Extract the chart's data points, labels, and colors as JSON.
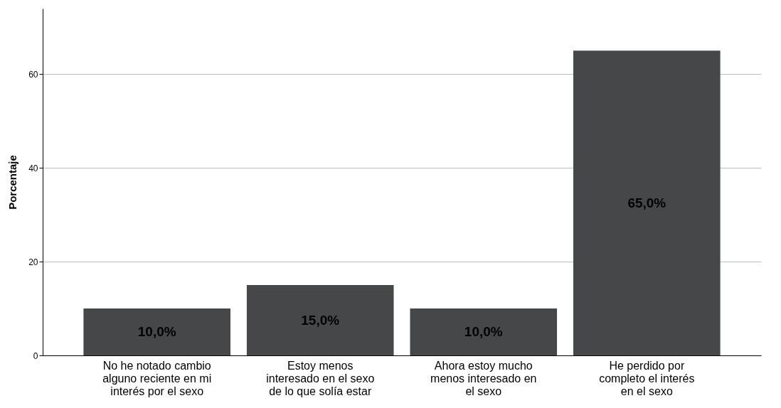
{
  "chart_data": {
    "type": "bar",
    "ylabel": "Porcentaje",
    "categories": [
      "No he notado cambio alguno reciente en mi interés por el sexo",
      "Estoy menos interesado en el sexo de lo que solía estar",
      "Ahora estoy mucho menos interesado en el sexo",
      "He perdido por completo el interés en el sexo"
    ],
    "values": [
      10,
      15,
      10,
      65
    ],
    "value_labels": [
      "10,0%",
      "15,0%",
      "10,0%",
      "65,0%"
    ],
    "color": "#464749",
    "ylim": [
      0,
      74
    ],
    "yticks": [
      0,
      20,
      40,
      60
    ],
    "grid": "y"
  }
}
